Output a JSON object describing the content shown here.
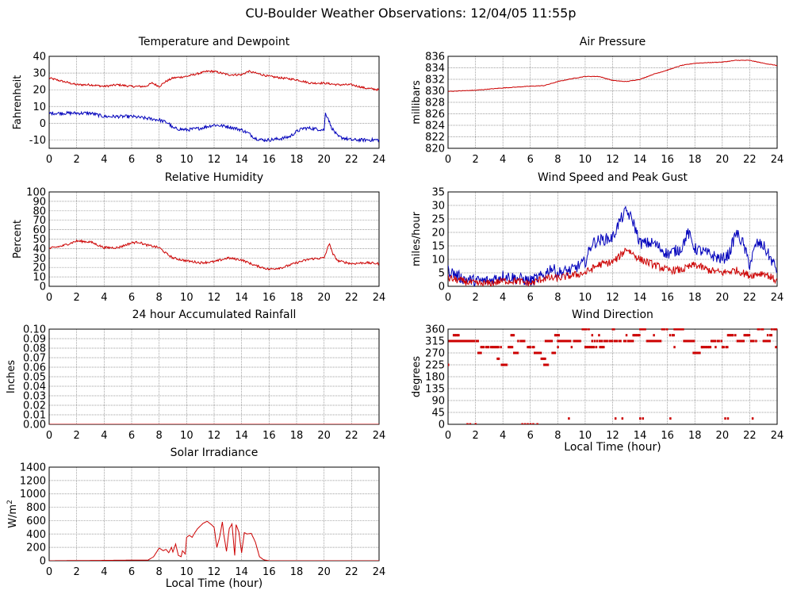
{
  "page_title": "CU-Boulder Weather Observations: 12/04/05 11:55p",
  "colors": {
    "red": "#cc0000",
    "blue": "#0000bb",
    "grid": "#808080"
  },
  "chart_data": [
    {
      "id": "temp",
      "type": "line",
      "title": "Temperature and Dewpoint",
      "ylabel": "Fahrenheit",
      "xlabel": "",
      "xlim": [
        0,
        24
      ],
      "ylim": [
        -15,
        40
      ],
      "yticks": [
        -10,
        0,
        10,
        20,
        30,
        40
      ],
      "xticks": [
        0,
        2,
        4,
        6,
        8,
        10,
        12,
        14,
        16,
        18,
        20,
        22,
        24
      ],
      "series": [
        {
          "color": "red",
          "noise": 0.6,
          "x": [
            0,
            1,
            2,
            3,
            4,
            5,
            6,
            7,
            7.5,
            8,
            8.5,
            9,
            10,
            11,
            11.5,
            12,
            12.5,
            13,
            14,
            14.5,
            15,
            16,
            17,
            18,
            19,
            20,
            21,
            22,
            23,
            24
          ],
          "y": [
            27,
            25,
            23,
            23,
            22,
            23,
            22,
            22,
            24,
            22,
            25,
            27,
            28,
            30,
            31,
            31,
            30,
            29,
            29,
            31,
            30,
            28,
            27,
            26,
            24,
            24,
            23,
            23,
            21,
            20
          ]
        },
        {
          "color": "blue",
          "noise": 1.0,
          "x": [
            0,
            1,
            2,
            3,
            4,
            5,
            6,
            7,
            8,
            8.7,
            9,
            10,
            11,
            12,
            13,
            14,
            14.5,
            15,
            15.5,
            16,
            17,
            17.5,
            18,
            18.5,
            19,
            20,
            20.1,
            20.3,
            20.5,
            21,
            22,
            23,
            24
          ],
          "y": [
            6,
            6,
            6,
            6,
            4,
            4,
            4,
            3,
            2,
            0,
            -3,
            -4,
            -3,
            -1,
            -2,
            -4,
            -6,
            -9,
            -10,
            -10,
            -9,
            -8,
            -5,
            -3,
            -3,
            -4,
            6,
            3,
            -2,
            -8,
            -10,
            -10,
            -10
          ]
        }
      ]
    },
    {
      "id": "pressure",
      "type": "line",
      "title": "Air Pressure",
      "ylabel": "millibars",
      "xlabel": "",
      "xlim": [
        0,
        24
      ],
      "ylim": [
        820,
        836
      ],
      "yticks": [
        820,
        822,
        824,
        826,
        828,
        830,
        832,
        834,
        836
      ],
      "xticks": [
        0,
        2,
        4,
        6,
        8,
        10,
        12,
        14,
        16,
        18,
        20,
        22,
        24
      ],
      "series": [
        {
          "color": "red",
          "noise": 0.05,
          "x": [
            0,
            2,
            4,
            6,
            7,
            8,
            9,
            10,
            11,
            12,
            13,
            14,
            15,
            16,
            17,
            18,
            19,
            20,
            21,
            22,
            23,
            24
          ],
          "y": [
            829.9,
            830.1,
            830.5,
            830.8,
            830.9,
            831.6,
            832.1,
            832.5,
            832.5,
            831.8,
            831.6,
            832.0,
            832.9,
            833.6,
            834.4,
            834.8,
            834.9,
            835.0,
            835.3,
            835.3,
            834.8,
            834.4
          ]
        }
      ]
    },
    {
      "id": "humidity",
      "type": "line",
      "title": "Relative Humidity",
      "ylabel": "Percent",
      "xlabel": "",
      "xlim": [
        0,
        24
      ],
      "ylim": [
        0,
        100
      ],
      "yticks": [
        0,
        10,
        20,
        30,
        40,
        50,
        60,
        70,
        80,
        90,
        100
      ],
      "xticks": [
        0,
        2,
        4,
        6,
        8,
        10,
        12,
        14,
        16,
        18,
        20,
        22,
        24
      ],
      "series": [
        {
          "color": "red",
          "noise": 1.2,
          "x": [
            0,
            1,
            2,
            3,
            4,
            5,
            6,
            6.5,
            7,
            8,
            8.5,
            9,
            10,
            11,
            12,
            13,
            14,
            14.5,
            15,
            16,
            17,
            18,
            19,
            20,
            20.2,
            20.4,
            20.6,
            21,
            22,
            23,
            24
          ],
          "y": [
            40,
            43,
            48,
            47,
            41,
            41,
            46,
            47,
            44,
            41,
            35,
            30,
            27,
            25,
            26,
            30,
            28,
            25,
            22,
            18,
            20,
            25,
            29,
            30,
            38,
            46,
            35,
            27,
            24,
            25,
            24
          ]
        }
      ]
    },
    {
      "id": "wind",
      "type": "line",
      "title": "Wind Speed and Peak Gust",
      "ylabel": "miles/hour",
      "xlabel": "",
      "xlim": [
        0,
        24
      ],
      "ylim": [
        0,
        35
      ],
      "yticks": [
        0,
        5,
        10,
        15,
        20,
        25,
        30,
        35
      ],
      "xticks": [
        0,
        2,
        4,
        6,
        8,
        10,
        12,
        14,
        16,
        18,
        20,
        22,
        24
      ],
      "series": [
        {
          "color": "blue",
          "noise": 2.2,
          "x": [
            0,
            1,
            2,
            3,
            4,
            5,
            6,
            7,
            7.5,
            8,
            9,
            10,
            10.5,
            11,
            12,
            12.5,
            13,
            13.5,
            14,
            15,
            16,
            17,
            17.5,
            18,
            19,
            20,
            20.5,
            21,
            21.5,
            22,
            22.5,
            23,
            24
          ],
          "y": [
            6,
            3,
            2,
            2,
            4,
            3,
            2,
            4,
            7,
            5,
            6,
            9,
            16,
            17,
            18,
            24,
            28,
            24,
            16,
            16,
            12,
            14,
            20,
            14,
            12,
            10,
            12,
            20,
            16,
            8,
            16,
            15,
            6
          ]
        },
        {
          "color": "red",
          "noise": 1.4,
          "x": [
            0,
            1,
            2,
            3,
            4,
            5,
            6,
            7,
            8,
            9,
            10,
            11,
            12,
            12.5,
            13,
            14,
            15,
            16,
            17,
            18,
            19,
            20,
            21,
            22,
            23,
            24
          ],
          "y": [
            3,
            2,
            1,
            1,
            2,
            2,
            1,
            3,
            3,
            4,
            5,
            8,
            9,
            11,
            14,
            10,
            8,
            6,
            6,
            8,
            6,
            5,
            6,
            4,
            5,
            2
          ]
        }
      ]
    },
    {
      "id": "rain",
      "type": "line",
      "title": "24 hour Accumulated Rainfall",
      "ylabel": "Inches",
      "xlabel": "",
      "xlim": [
        0,
        24
      ],
      "ylim": [
        0,
        0.1
      ],
      "yticks": [
        0,
        0.01,
        0.02,
        0.03,
        0.04,
        0.05,
        0.06,
        0.07,
        0.08,
        0.09,
        0.1
      ],
      "ytick_labels": [
        "0.00",
        "0.01",
        "0.02",
        "0.03",
        "0.04",
        "0.05",
        "0.06",
        "0.07",
        "0.08",
        "0.09",
        "0.10"
      ],
      "xticks": [
        0,
        2,
        4,
        6,
        8,
        10,
        12,
        14,
        16,
        18,
        20,
        22,
        24
      ],
      "series": [
        {
          "color": "red",
          "noise": 0,
          "x": [
            0,
            24
          ],
          "y": [
            0,
            0
          ]
        }
      ]
    },
    {
      "id": "winddir",
      "type": "scatter",
      "title": "Wind Direction",
      "ylabel": "degrees",
      "xlabel": "Local Time (hour)",
      "xlim": [
        0,
        24
      ],
      "ylim": [
        0,
        360
      ],
      "yticks": [
        0,
        45,
        90,
        135,
        180,
        225,
        270,
        315,
        360
      ],
      "xticks": [
        0,
        2,
        4,
        6,
        8,
        10,
        12,
        14,
        16,
        18,
        20,
        22,
        24
      ],
      "series": [
        {
          "color": "red",
          "segments": [
            [
              0.0,
              1.9,
              315
            ],
            [
              0.4,
              0.8,
              337
            ],
            [
              1.9,
              2.2,
              315
            ],
            [
              2.2,
              2.4,
              270
            ],
            [
              2.4,
              3.9,
              292
            ],
            [
              3.6,
              3.8,
              248
            ],
            [
              3.9,
              4.4,
              225
            ],
            [
              4.4,
              4.7,
              292
            ],
            [
              4.8,
              5.1,
              270
            ],
            [
              4.6,
              4.9,
              337
            ],
            [
              5.1,
              5.6,
              315
            ],
            [
              5.8,
              6.3,
              292
            ],
            [
              6.3,
              6.8,
              270
            ],
            [
              6.8,
              7.1,
              248
            ],
            [
              7.0,
              7.3,
              225
            ],
            [
              7.1,
              7.6,
              315
            ],
            [
              7.6,
              7.9,
              270
            ],
            [
              7.8,
              8.1,
              337
            ],
            [
              8.0,
              9.8,
              315
            ],
            [
              9.8,
              10.3,
              360
            ],
            [
              10.0,
              10.7,
              292
            ],
            [
              10.5,
              11.5,
              315
            ],
            [
              10.8,
              11.4,
              292
            ],
            [
              11.5,
              12.3,
              315
            ],
            [
              12.0,
              12.2,
              360
            ],
            [
              12.3,
              13.5,
              315
            ],
            [
              13.5,
              14.0,
              337
            ],
            [
              14.0,
              14.4,
              360
            ],
            [
              14.5,
              15.5,
              315
            ],
            [
              15.6,
              16.0,
              360
            ],
            [
              16.0,
              16.5,
              337
            ],
            [
              16.5,
              17.2,
              360
            ],
            [
              17.2,
              18.0,
              315
            ],
            [
              17.8,
              18.4,
              270
            ],
            [
              18.4,
              19.2,
              292
            ],
            [
              19.2,
              20.0,
              315
            ],
            [
              20.0,
              20.4,
              292
            ],
            [
              20.4,
              21.0,
              337
            ],
            [
              21.0,
              21.6,
              315
            ],
            [
              21.6,
              22.0,
              337
            ],
            [
              22.0,
              22.5,
              315
            ],
            [
              22.5,
              23.0,
              360
            ],
            [
              23.0,
              23.5,
              315
            ],
            [
              23.3,
              23.6,
              337
            ],
            [
              23.6,
              24.0,
              360
            ]
          ],
          "points": [
            [
              0,
              225
            ],
            [
              1.4,
              0
            ],
            [
              1.6,
              0
            ],
            [
              2.0,
              0
            ],
            [
              5.4,
              0
            ],
            [
              5.6,
              0
            ],
            [
              5.8,
              0
            ],
            [
              6.0,
              0
            ],
            [
              6.5,
              0
            ],
            [
              6.2,
              0
            ],
            [
              8.8,
              22
            ],
            [
              12.2,
              22
            ],
            [
              12.7,
              22
            ],
            [
              14.0,
              22
            ],
            [
              14.2,
              22
            ],
            [
              16.2,
              22
            ],
            [
              20.2,
              22
            ],
            [
              20.4,
              22
            ],
            [
              22.2,
              22
            ],
            [
              8.0,
              292
            ],
            [
              9.0,
              292
            ],
            [
              10.5,
              337
            ],
            [
              11.0,
              337
            ],
            [
              13.0,
              337
            ],
            [
              15.0,
              337
            ],
            [
              16.5,
              292
            ],
            [
              18.5,
              292
            ],
            [
              19.5,
              292
            ],
            [
              23.9,
              292
            ]
          ]
        }
      ]
    },
    {
      "id": "solar",
      "type": "line",
      "title": "Solar Irradiance",
      "ylabel": "W/m2",
      "xlabel": "Local Time (hour)",
      "xlim": [
        0,
        24
      ],
      "ylim": [
        0,
        1400
      ],
      "yticks": [
        0,
        200,
        400,
        600,
        800,
        1000,
        1200,
        1400
      ],
      "xticks": [
        0,
        2,
        4,
        6,
        8,
        10,
        12,
        14,
        16,
        18,
        20,
        22,
        24
      ],
      "series": [
        {
          "color": "red",
          "noise": 0,
          "x": [
            0,
            7.2,
            7.6,
            8.0,
            8.3,
            8.5,
            8.7,
            8.9,
            9.0,
            9.2,
            9.4,
            9.6,
            9.7,
            9.9,
            10.0,
            10.2,
            10.4,
            10.6,
            10.8,
            11.0,
            11.2,
            11.5,
            11.8,
            12.0,
            12.2,
            12.4,
            12.6,
            12.7,
            12.9,
            13.1,
            13.3,
            13.5,
            13.6,
            13.8,
            14.0,
            14.2,
            14.4,
            14.7,
            15.0,
            15.3,
            15.6,
            16.0,
            24
          ],
          "y": [
            0,
            10,
            60,
            190,
            150,
            170,
            120,
            200,
            130,
            250,
            80,
            60,
            150,
            100,
            350,
            380,
            350,
            420,
            480,
            520,
            560,
            590,
            540,
            500,
            200,
            350,
            580,
            400,
            140,
            480,
            550,
            80,
            540,
            430,
            120,
            420,
            400,
            410,
            280,
            60,
            15,
            0,
            0
          ]
        }
      ]
    }
  ]
}
